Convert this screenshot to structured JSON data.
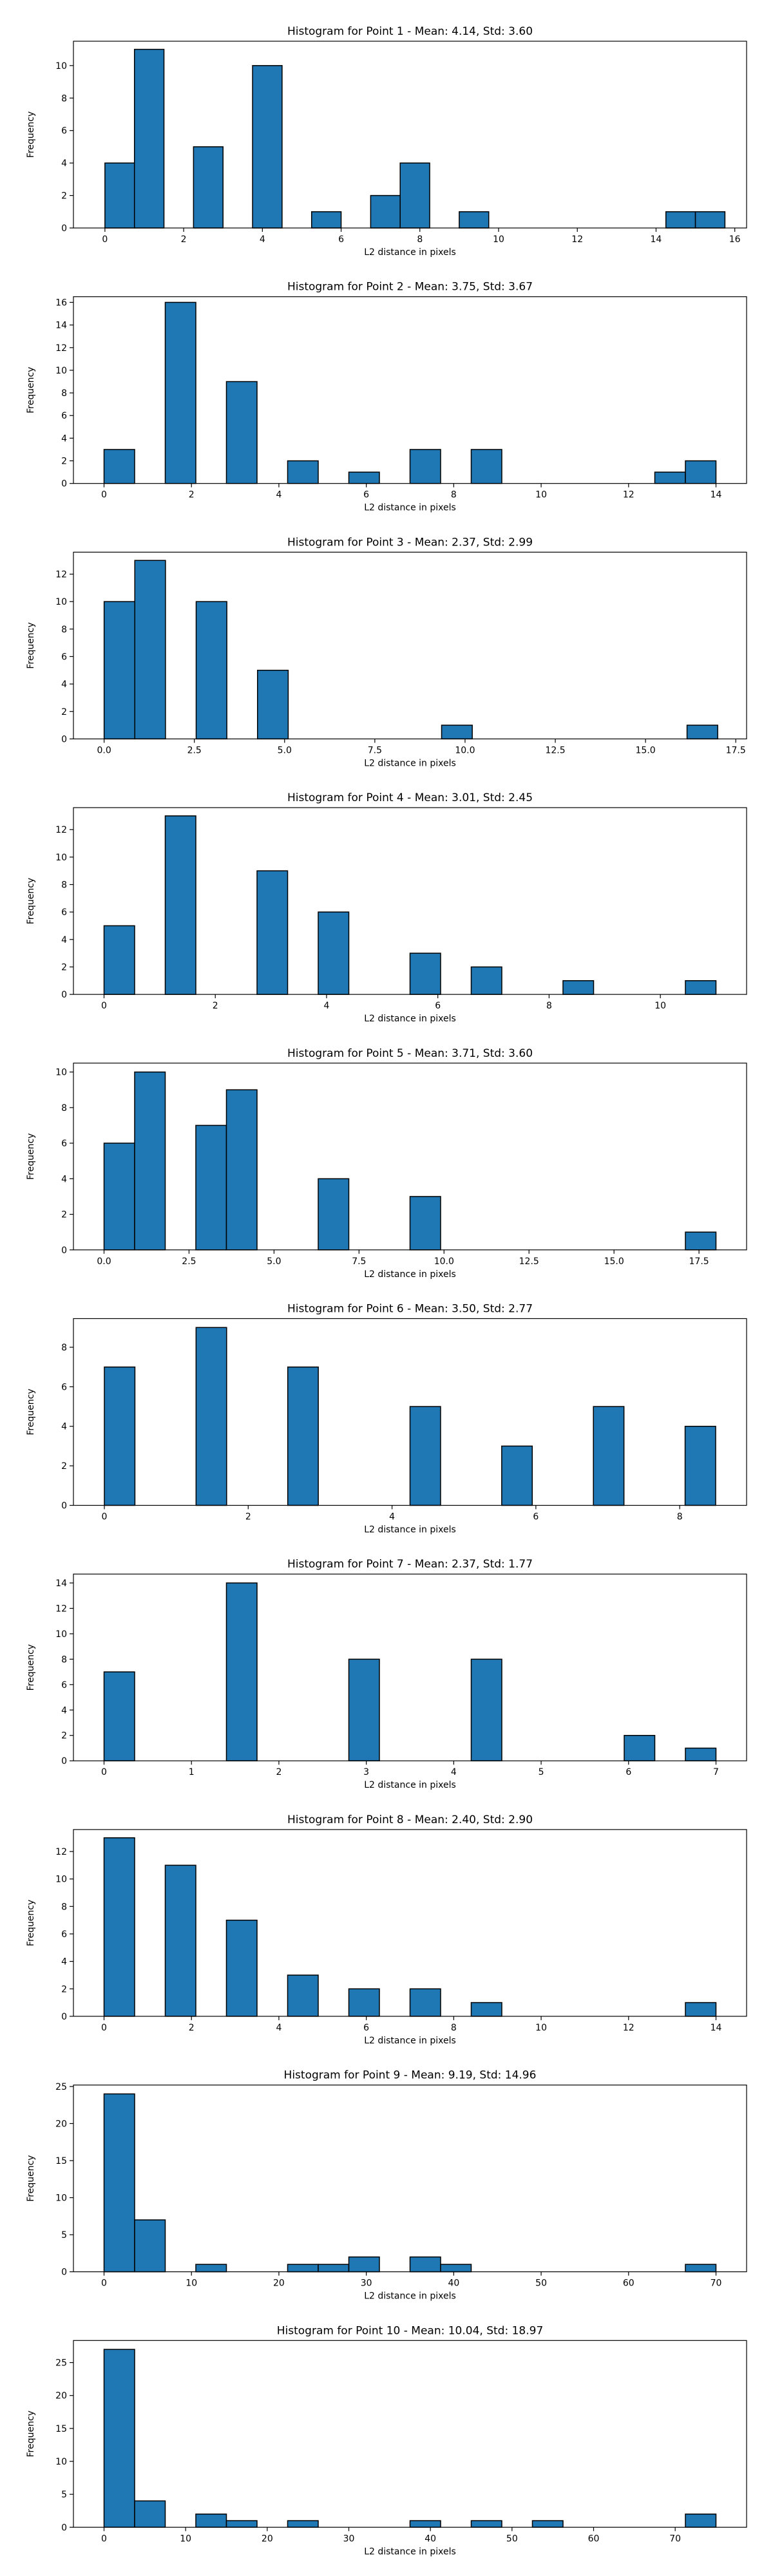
{
  "figure": {
    "xlabel_common": "L2 distance in pixels",
    "ylabel_common": "Frequency",
    "bar_color": "#1f77b4",
    "edge_color": "#000000"
  },
  "chart_data": [
    {
      "type": "bar",
      "title": "Histogram for Point 1 - Mean: 4.14, Std: 3.60",
      "xlabel": "L2 distance in pixels",
      "ylabel": "Frequency",
      "xlim": [
        -0.8,
        16.3
      ],
      "ylim": [
        0,
        11.5
      ],
      "xticks": [
        0,
        2,
        4,
        6,
        8,
        10,
        12,
        14,
        16
      ],
      "yticks": [
        0,
        2,
        4,
        6,
        8,
        10
      ],
      "bin_width": 0.75,
      "bins": [
        [
          0,
          4
        ],
        [
          0.75,
          11
        ],
        [
          2.25,
          5
        ],
        [
          3.75,
          10
        ],
        [
          5.25,
          1
        ],
        [
          6.75,
          2
        ],
        [
          7.5,
          4
        ],
        [
          9,
          1
        ],
        [
          14.25,
          1
        ],
        [
          15,
          1
        ]
      ]
    },
    {
      "type": "bar",
      "title": "Histogram for Point 2 - Mean: 3.75, Std: 3.67",
      "xlabel": "L2 distance in pixels",
      "ylabel": "Frequency",
      "xlim": [
        -0.7,
        14.7
      ],
      "ylim": [
        0,
        16.5
      ],
      "xticks": [
        0,
        2,
        4,
        6,
        8,
        10,
        12,
        14
      ],
      "yticks": [
        0,
        2,
        4,
        6,
        8,
        10,
        12,
        14,
        16
      ],
      "bin_width": 0.7,
      "bins": [
        [
          0,
          3
        ],
        [
          1.4,
          16
        ],
        [
          2.8,
          9
        ],
        [
          4.2,
          2
        ],
        [
          5.6,
          1
        ],
        [
          7,
          3
        ],
        [
          8.4,
          3
        ],
        [
          12.6,
          1
        ],
        [
          13.3,
          2
        ]
      ]
    },
    {
      "type": "bar",
      "title": "Histogram for Point 3 - Mean: 2.37, Std: 2.99",
      "xlabel": "L2 distance in pixels",
      "ylabel": "Frequency",
      "xlim": [
        -0.85,
        17.8
      ],
      "ylim": [
        0,
        13.6
      ],
      "xticks": [
        0.0,
        2.5,
        5.0,
        7.5,
        10.0,
        12.5,
        15.0,
        17.5
      ],
      "xtick_labels": [
        "0.0",
        "2.5",
        "5.0",
        "7.5",
        "10.0",
        "12.5",
        "15.0",
        "17.5"
      ],
      "yticks": [
        0,
        2,
        4,
        6,
        8,
        10,
        12
      ],
      "bin_width": 0.85,
      "bins": [
        [
          0,
          10
        ],
        [
          0.85,
          13
        ],
        [
          2.55,
          10
        ],
        [
          4.25,
          5
        ],
        [
          9.35,
          1
        ],
        [
          16.15,
          1
        ]
      ]
    },
    {
      "type": "bar",
      "title": "Histogram for Point 4 - Mean: 3.01, Std: 2.45",
      "xlabel": "L2 distance in pixels",
      "ylabel": "Frequency",
      "xlim": [
        -0.55,
        11.55
      ],
      "ylim": [
        0,
        13.6
      ],
      "xticks": [
        0,
        2,
        4,
        6,
        8,
        10
      ],
      "yticks": [
        0,
        2,
        4,
        6,
        8,
        10,
        12
      ],
      "bin_width": 0.55,
      "bins": [
        [
          0,
          5
        ],
        [
          1.1,
          13
        ],
        [
          2.75,
          9
        ],
        [
          3.85,
          6
        ],
        [
          5.5,
          3
        ],
        [
          6.6,
          2
        ],
        [
          8.25,
          1
        ],
        [
          10.45,
          1
        ]
      ]
    },
    {
      "type": "bar",
      "title": "Histogram for Point 5 - Mean: 3.71, Std: 3.60",
      "xlabel": "L2 distance in pixels",
      "ylabel": "Frequency",
      "xlim": [
        -0.9,
        18.9
      ],
      "ylim": [
        0,
        10.5
      ],
      "xticks": [
        0.0,
        2.5,
        5.0,
        7.5,
        10.0,
        12.5,
        15.0,
        17.5
      ],
      "xtick_labels": [
        "0.0",
        "2.5",
        "5.0",
        "7.5",
        "10.0",
        "12.5",
        "15.0",
        "17.5"
      ],
      "yticks": [
        0,
        2,
        4,
        6,
        8,
        10
      ],
      "bin_width": 0.9,
      "bins": [
        [
          0,
          6
        ],
        [
          0.9,
          10
        ],
        [
          2.7,
          7
        ],
        [
          3.6,
          9
        ],
        [
          6.3,
          4
        ],
        [
          9,
          3
        ],
        [
          17.1,
          1
        ]
      ]
    },
    {
      "type": "bar",
      "title": "Histogram for Point 6 - Mean: 3.50, Std: 2.77",
      "xlabel": "L2 distance in pixels",
      "ylabel": "Frequency",
      "xlim": [
        -0.43,
        8.93
      ],
      "ylim": [
        0,
        9.45
      ],
      "xticks": [
        0,
        2,
        4,
        6,
        8
      ],
      "yticks": [
        0,
        2,
        4,
        6,
        8
      ],
      "bin_width": 0.425,
      "bins": [
        [
          0,
          7
        ],
        [
          1.275,
          9
        ],
        [
          2.55,
          7
        ],
        [
          4.25,
          5
        ],
        [
          5.525,
          3
        ],
        [
          6.8,
          5
        ],
        [
          8.075,
          4
        ]
      ]
    },
    {
      "type": "bar",
      "title": "Histogram for Point 7 - Mean: 2.37, Std: 1.77",
      "xlabel": "L2 distance in pixels",
      "ylabel": "Frequency",
      "xlim": [
        -0.35,
        7.35
      ],
      "ylim": [
        0,
        14.7
      ],
      "xticks": [
        0,
        1,
        2,
        3,
        4,
        5,
        6,
        7
      ],
      "yticks": [
        0,
        2,
        4,
        6,
        8,
        10,
        12,
        14
      ],
      "bin_width": 0.35,
      "bins": [
        [
          0,
          7
        ],
        [
          1.4,
          14
        ],
        [
          2.8,
          8
        ],
        [
          4.2,
          8
        ],
        [
          5.95,
          2
        ],
        [
          6.65,
          1
        ]
      ]
    },
    {
      "type": "bar",
      "title": "Histogram for Point 8 - Mean: 2.40, Std: 2.90",
      "xlabel": "L2 distance in pixels",
      "ylabel": "Frequency",
      "xlim": [
        -0.7,
        14.7
      ],
      "ylim": [
        0,
        13.6
      ],
      "xticks": [
        0,
        2,
        4,
        6,
        8,
        10,
        12,
        14
      ],
      "yticks": [
        0,
        2,
        4,
        6,
        8,
        10,
        12
      ],
      "bin_width": 0.7,
      "bins": [
        [
          0,
          13
        ],
        [
          1.4,
          11
        ],
        [
          2.8,
          7
        ],
        [
          4.2,
          3
        ],
        [
          5.6,
          2
        ],
        [
          7,
          2
        ],
        [
          8.4,
          1
        ],
        [
          13.3,
          1
        ]
      ]
    },
    {
      "type": "bar",
      "title": "Histogram for Point 9 - Mean: 9.19, Std: 14.96",
      "xlabel": "L2 distance in pixels",
      "ylabel": "Frequency",
      "xlim": [
        -3.5,
        73.5
      ],
      "ylim": [
        0,
        25.2
      ],
      "xticks": [
        0,
        10,
        20,
        30,
        40,
        50,
        60,
        70
      ],
      "yticks": [
        0,
        5,
        10,
        15,
        20,
        25
      ],
      "bin_width": 3.5,
      "bins": [
        [
          0,
          24
        ],
        [
          3.5,
          7
        ],
        [
          10.5,
          1
        ],
        [
          21,
          1
        ],
        [
          24.5,
          1
        ],
        [
          28,
          2
        ],
        [
          35,
          2
        ],
        [
          38.5,
          1
        ],
        [
          66.5,
          1
        ]
      ]
    },
    {
      "type": "bar",
      "title": "Histogram for Point 10 - Mean: 10.04, Std: 18.97",
      "xlabel": "L2 distance in pixels",
      "ylabel": "Frequency",
      "xlim": [
        -3.75,
        78.75
      ],
      "ylim": [
        0,
        28.35
      ],
      "xticks": [
        0,
        10,
        20,
        30,
        40,
        50,
        60,
        70
      ],
      "yticks": [
        0,
        5,
        10,
        15,
        20,
        25
      ],
      "bin_width": 3.75,
      "bins": [
        [
          0,
          27
        ],
        [
          3.75,
          4
        ],
        [
          11.25,
          2
        ],
        [
          15,
          1
        ],
        [
          22.5,
          1
        ],
        [
          37.5,
          1
        ],
        [
          45,
          1
        ],
        [
          52.5,
          1
        ],
        [
          71.25,
          2
        ]
      ]
    }
  ]
}
